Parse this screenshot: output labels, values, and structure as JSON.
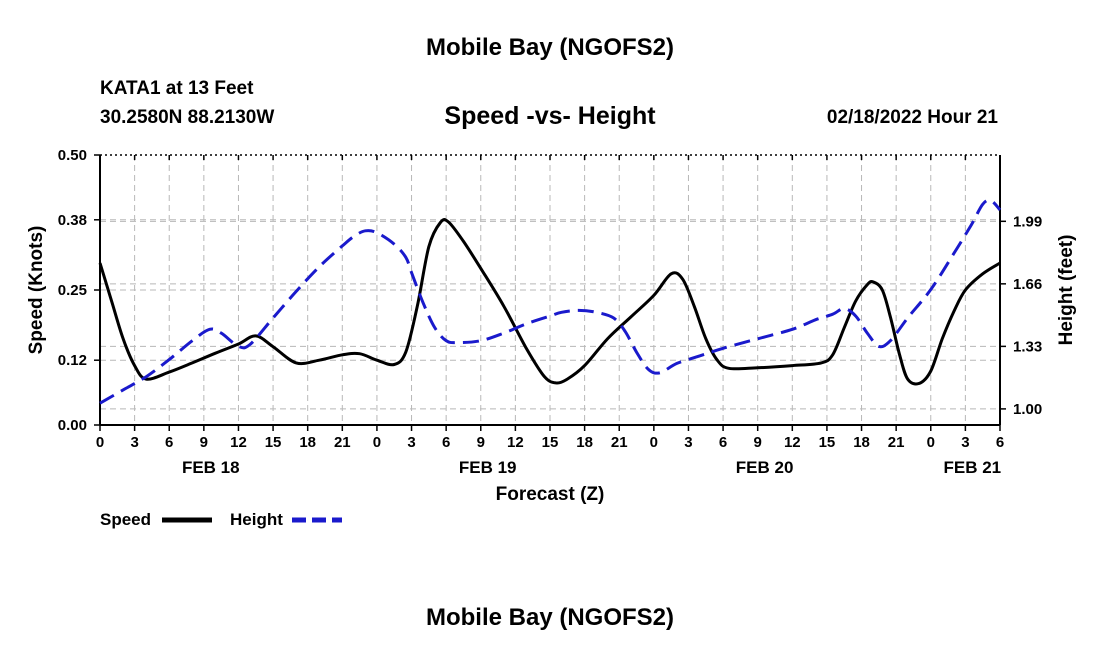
{
  "header": {
    "title": "Mobile Bay (NGOFS2)",
    "station": "KATA1 at 13 Feet",
    "coords": "30.2580N  88.2130W",
    "subtitle": "Speed -vs- Height",
    "timestamp": "02/18/2022 Hour 21"
  },
  "footer": {
    "title_repeat": "Mobile Bay (NGOFS2)"
  },
  "legend": {
    "speed_label": "Speed",
    "height_label": "Height"
  },
  "colors": {
    "speed": "#000000",
    "height": "#1a1acc",
    "grid": "#b8b8b8"
  },
  "chart_data": {
    "type": "line",
    "title": "Speed -vs- Height",
    "xlabel": "Forecast (Z)",
    "ylabel": "Speed (Knots)",
    "y2label": "Height (feet)",
    "xlim": [
      0,
      78
    ],
    "ylim": [
      0,
      0.5
    ],
    "y2lim": [
      0.915,
      2.34
    ],
    "grid": true,
    "x_ticks": [
      0,
      3,
      6,
      9,
      12,
      15,
      18,
      21,
      24,
      27,
      30,
      33,
      36,
      39,
      42,
      45,
      48,
      51,
      54,
      57,
      60,
      63,
      66,
      69,
      72,
      75,
      78
    ],
    "x_tick_labels": [
      "0",
      "3",
      "6",
      "9",
      "12",
      "15",
      "18",
      "21",
      "0",
      "3",
      "6",
      "9",
      "12",
      "15",
      "18",
      "21",
      "0",
      "3",
      "6",
      "9",
      "12",
      "15",
      "18",
      "21",
      "0",
      "3",
      "6"
    ],
    "date_labels": [
      {
        "x": 9.6,
        "label": "FEB 18"
      },
      {
        "x": 33.6,
        "label": "FEB 19"
      },
      {
        "x": 57.6,
        "label": "FEB 20"
      },
      {
        "x": 75.6,
        "label": "FEB 21"
      }
    ],
    "y_ticks": [
      0.0,
      0.12,
      0.25,
      0.38,
      0.5
    ],
    "y_tick_labels": [
      "0.00",
      "0.12",
      "0.25",
      "0.38",
      "0.50"
    ],
    "y2_ticks": [
      1.0,
      1.33,
      1.66,
      1.99
    ],
    "y2_tick_labels": [
      "1.00",
      "1.33",
      "1.66",
      "1.99"
    ],
    "series": [
      {
        "name": "Speed",
        "axis": "left",
        "style": "solid",
        "points": [
          [
            0,
            0.3
          ],
          [
            1,
            0.23
          ],
          [
            2,
            0.16
          ],
          [
            3,
            0.11
          ],
          [
            4,
            0.085
          ],
          [
            6,
            0.098
          ],
          [
            8,
            0.115
          ],
          [
            10,
            0.133
          ],
          [
            12,
            0.15
          ],
          [
            13.5,
            0.165
          ],
          [
            15,
            0.145
          ],
          [
            17,
            0.115
          ],
          [
            19,
            0.12
          ],
          [
            21,
            0.13
          ],
          [
            22.5,
            0.132
          ],
          [
            24,
            0.12
          ],
          [
            25.5,
            0.112
          ],
          [
            26.5,
            0.135
          ],
          [
            27.5,
            0.22
          ],
          [
            28.5,
            0.33
          ],
          [
            29.5,
            0.375
          ],
          [
            30.2,
            0.376
          ],
          [
            31.5,
            0.34
          ],
          [
            33,
            0.29
          ],
          [
            35,
            0.22
          ],
          [
            37,
            0.14
          ],
          [
            38.5,
            0.09
          ],
          [
            39.5,
            0.078
          ],
          [
            40.5,
            0.085
          ],
          [
            42,
            0.11
          ],
          [
            44,
            0.16
          ],
          [
            46,
            0.2
          ],
          [
            48,
            0.24
          ],
          [
            49.5,
            0.28
          ],
          [
            50.5,
            0.27
          ],
          [
            51.5,
            0.22
          ],
          [
            52.5,
            0.16
          ],
          [
            53.5,
            0.12
          ],
          [
            54.5,
            0.105
          ],
          [
            57,
            0.106
          ],
          [
            60,
            0.11
          ],
          [
            62.5,
            0.115
          ],
          [
            63.5,
            0.13
          ],
          [
            64.5,
            0.18
          ],
          [
            65.5,
            0.23
          ],
          [
            66.5,
            0.26
          ],
          [
            67,
            0.265
          ],
          [
            67.8,
            0.25
          ],
          [
            68.5,
            0.2
          ],
          [
            69.3,
            0.13
          ],
          [
            70,
            0.085
          ],
          [
            71,
            0.077
          ],
          [
            72,
            0.1
          ],
          [
            73,
            0.16
          ],
          [
            74,
            0.21
          ],
          [
            75,
            0.25
          ],
          [
            76.5,
            0.28
          ],
          [
            78,
            0.3
          ]
        ]
      },
      {
        "name": "Height",
        "axis": "right",
        "style": "dashed",
        "points": [
          [
            0,
            1.03
          ],
          [
            2,
            1.1
          ],
          [
            4,
            1.17
          ],
          [
            6,
            1.26
          ],
          [
            8,
            1.36
          ],
          [
            9.5,
            1.42
          ],
          [
            10.5,
            1.4
          ],
          [
            12,
            1.33
          ],
          [
            13,
            1.34
          ],
          [
            15,
            1.48
          ],
          [
            17,
            1.62
          ],
          [
            19,
            1.75
          ],
          [
            21,
            1.86
          ],
          [
            22,
            1.91
          ],
          [
            23,
            1.94
          ],
          [
            24,
            1.93
          ],
          [
            25.5,
            1.87
          ],
          [
            26.5,
            1.8
          ],
          [
            27,
            1.72
          ],
          [
            28,
            1.56
          ],
          [
            29,
            1.43
          ],
          [
            30,
            1.36
          ],
          [
            31,
            1.35
          ],
          [
            33,
            1.36
          ],
          [
            35,
            1.4
          ],
          [
            37,
            1.45
          ],
          [
            39,
            1.49
          ],
          [
            40,
            1.51
          ],
          [
            41.5,
            1.52
          ],
          [
            43,
            1.51
          ],
          [
            44.5,
            1.48
          ],
          [
            45.5,
            1.41
          ],
          [
            46.5,
            1.3
          ],
          [
            47.5,
            1.21
          ],
          [
            48.5,
            1.19
          ],
          [
            50,
            1.24
          ],
          [
            52,
            1.28
          ],
          [
            54,
            1.32
          ],
          [
            57,
            1.37
          ],
          [
            60,
            1.42
          ],
          [
            62,
            1.47
          ],
          [
            63.5,
            1.5
          ],
          [
            64.5,
            1.53
          ],
          [
            65.5,
            1.49
          ],
          [
            66.5,
            1.4
          ],
          [
            67.5,
            1.33
          ],
          [
            68.5,
            1.36
          ],
          [
            70,
            1.48
          ],
          [
            72,
            1.63
          ],
          [
            74,
            1.82
          ],
          [
            75.5,
            1.97
          ],
          [
            76.5,
            2.08
          ],
          [
            77.2,
            2.1
          ],
          [
            78,
            2.05
          ]
        ]
      }
    ]
  }
}
